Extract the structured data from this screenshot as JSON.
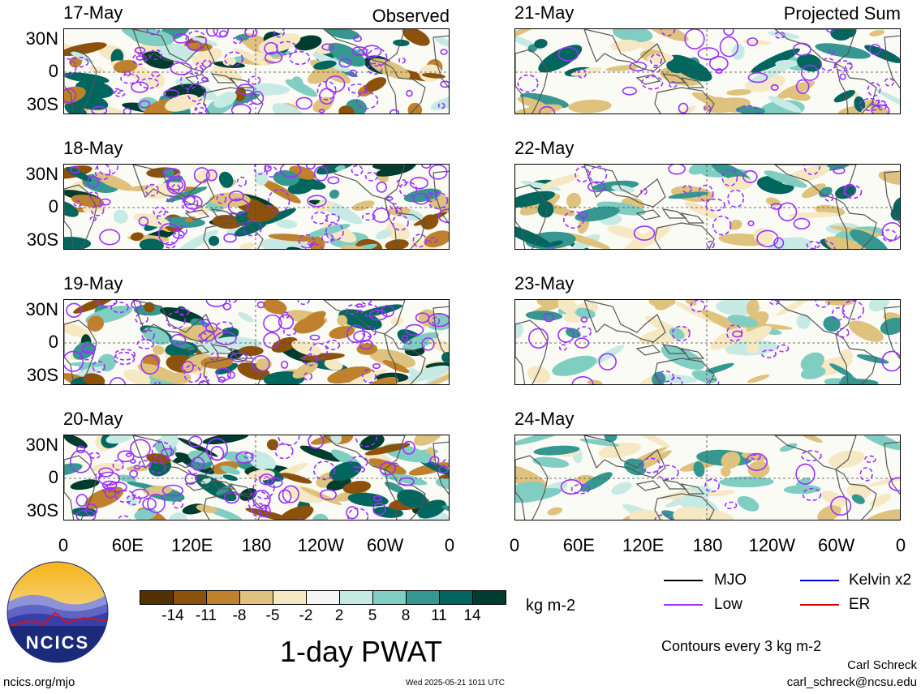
{
  "observed": {
    "tag": "Observed",
    "panels": [
      {
        "date": "17-May"
      },
      {
        "date": "18-May"
      },
      {
        "date": "19-May"
      },
      {
        "date": "20-May"
      }
    ]
  },
  "projected": {
    "tag": "Projected Sum",
    "panels": [
      {
        "date": "21-May"
      },
      {
        "date": "22-May"
      },
      {
        "date": "23-May"
      },
      {
        "date": "24-May"
      }
    ]
  },
  "lat_labels": [
    "30N",
    "0",
    "30S"
  ],
  "lon_labels": [
    "0",
    "60E",
    "120E",
    "180",
    "120W",
    "60W",
    "0"
  ],
  "colorbar": {
    "colors": [
      "#543005",
      "#8c510a",
      "#bf812d",
      "#dfc27d",
      "#f6e8c3",
      "#f5f5f5",
      "#c7eae5",
      "#80cdc1",
      "#35978f",
      "#01665e",
      "#003c30"
    ],
    "ticks": [
      "-14",
      "-11",
      "-8",
      "-5",
      "-2",
      "2",
      "5",
      "8",
      "11",
      "14"
    ],
    "units": "kg m-2"
  },
  "title": "1-day PWAT",
  "legend": [
    {
      "label": "MJO",
      "color": "#000000"
    },
    {
      "label": "Kelvin x2",
      "color": "#0000dd"
    },
    {
      "label": "Low",
      "color": "#9b30ff"
    },
    {
      "label": "ER",
      "color": "#cc0000"
    }
  ],
  "contour_note": "Contours every 3 kg m-2",
  "author": "Carl Schreck",
  "email": "carl_schreck@ncsu.edu",
  "site": "ncics.org/mjo",
  "timestamp": "Wed 2025-05-21 1011 UTC",
  "logo_text": "NCICS"
}
